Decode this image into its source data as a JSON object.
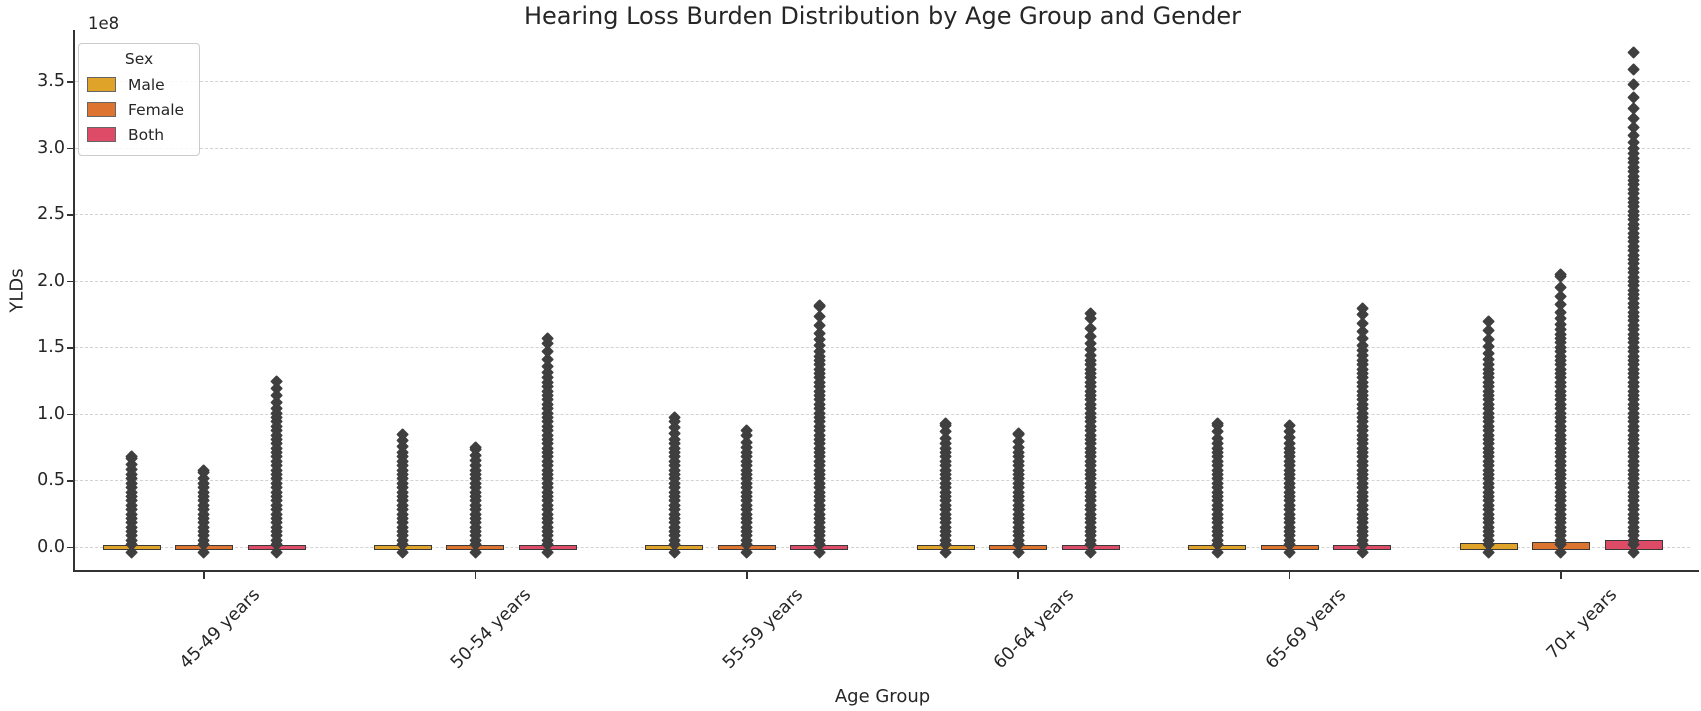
{
  "title": "Hearing Loss Burden Distribution by Age Group and Gender",
  "legend": {
    "title": "Sex"
  },
  "axes": {
    "ylabel": "YLDs",
    "xlabel": "Age Group",
    "y_offset_label": "1e8",
    "ytick_labels": [
      "0.0",
      "0.5",
      "1.0",
      "1.5",
      "2.0",
      "2.5",
      "3.0",
      "3.5"
    ]
  },
  "chart_data": {
    "type": "box",
    "title": "Hearing Loss Burden Distribution by Age Group and Gender",
    "xlabel": "Age Group",
    "ylabel": "YLDs",
    "y_unit_multiplier": "1e8",
    "ylim": [
      -0.18,
      3.9
    ],
    "yticks": [
      0.0,
      0.5,
      1.0,
      1.5,
      2.0,
      2.5,
      3.0,
      3.5
    ],
    "grid": "horizontal dashed gridlines at each y tick",
    "legend_position": "upper left",
    "legend_title": "Sex",
    "categories": [
      "45-49 years",
      "50-54 years",
      "55-59 years",
      "60-64 years",
      "65-69 years",
      "70+ years"
    ],
    "series": [
      {
        "name": "Male",
        "color": "#dfa32a",
        "outlier_stack_top": [
          0.68,
          0.85,
          0.98,
          0.93,
          0.93,
          1.7
        ]
      },
      {
        "name": "Female",
        "color": "#dd7430",
        "outlier_stack_top": [
          0.58,
          0.75,
          0.88,
          0.86,
          0.92,
          2.05
        ]
      },
      {
        "name": "Both",
        "color": "#de4b66",
        "outlier_stack_top": [
          1.25,
          1.57,
          1.82,
          1.76,
          1.8,
          3.72
        ]
      }
    ],
    "description": "Seaborn-style boxplots; boxes and whiskers are compressed flat against y=0, with dense vertical columns of diamond-shaped outliers rising to the per-group maxima listed in outlier_stack_top (values in units of 1e8 YLDs). Marker color dark gray #3f3f3f."
  }
}
